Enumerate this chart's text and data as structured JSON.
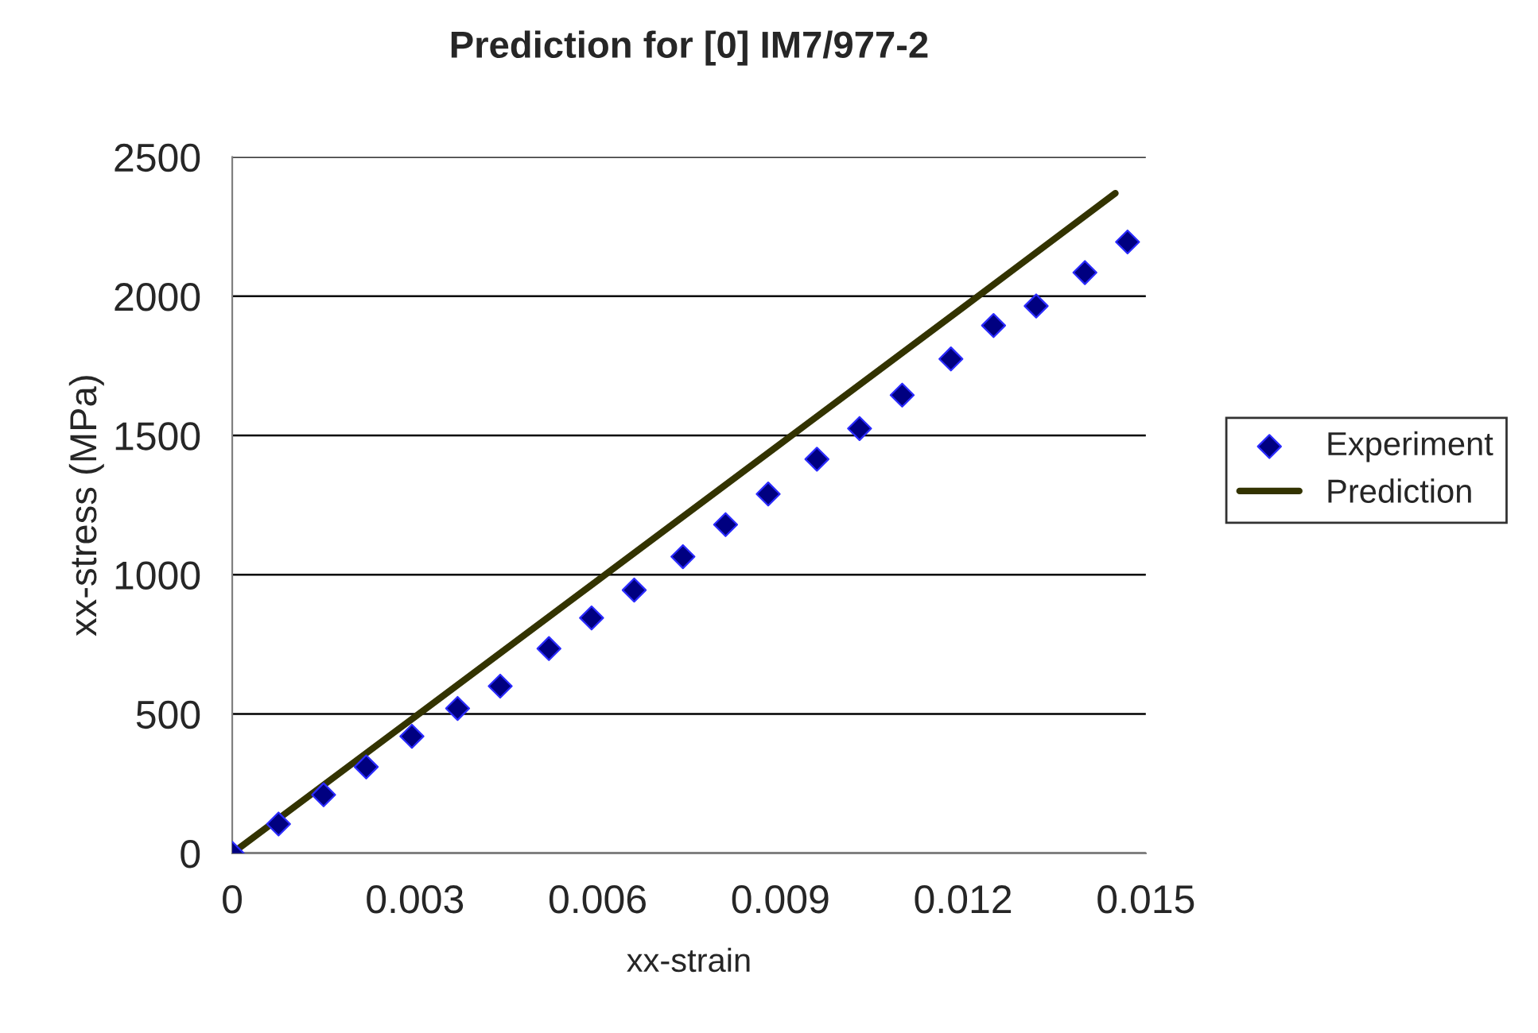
{
  "chart_data": {
    "type": "scatter",
    "title": "Prediction for [0] IM7/977-2",
    "xlabel": "xx-strain",
    "ylabel": "xx-stress (MPa)",
    "series": [
      {
        "name": "Experiment",
        "color": "#000080",
        "marker": "diamond",
        "x": [
          0,
          0.00076,
          0.0015,
          0.0022,
          0.00295,
          0.0037,
          0.0044,
          0.0052,
          0.0059,
          0.0066,
          0.0074,
          0.0081,
          0.0088,
          0.0096,
          0.0103,
          0.011,
          0.0118,
          0.0125,
          0.0132,
          0.014,
          0.0147
        ],
        "values": [
          0,
          105,
          210,
          310,
          420,
          520,
          600,
          735,
          845,
          945,
          1065,
          1180,
          1290,
          1415,
          1525,
          1645,
          1775,
          1895,
          1965,
          2085,
          2195
        ]
      },
      {
        "name": "Prediction",
        "type": "line",
        "color": "#333300",
        "marker": "none",
        "line_style": "solid",
        "x": [
          0,
          0.003,
          0.006,
          0.009,
          0.012,
          0.0145
        ],
        "values": [
          0,
          490,
          980,
          1470,
          1960,
          2370
        ]
      }
    ],
    "xlim": [
      0,
      0.015
    ],
    "xticks": [
      0,
      0.003,
      0.006,
      0.009,
      0.012,
      0.015
    ],
    "ylim": [
      0,
      2500
    ],
    "yticks": [
      0,
      500,
      1000,
      1500,
      2000,
      2500
    ],
    "grid": "y",
    "legend": "right"
  }
}
